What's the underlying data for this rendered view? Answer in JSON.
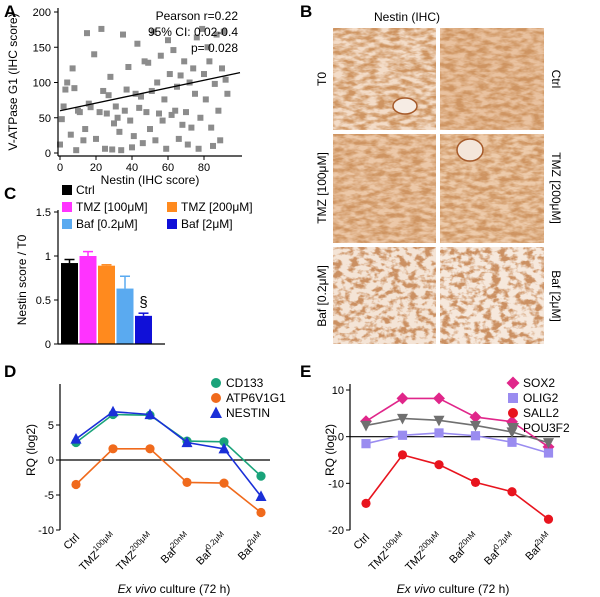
{
  "figure": {
    "panel_letters": [
      "A",
      "B",
      "C",
      "D",
      "E"
    ]
  },
  "chart_data": [
    {
      "panel": "A",
      "type": "scatter",
      "xlabel": "Nestin (IHC score)",
      "ylabel": "V-ATPase G1 (IHC score)",
      "xlim": [
        0,
        100
      ],
      "ylim": [
        0,
        200
      ],
      "xticks": [
        "0",
        "20",
        "40",
        "60",
        "80"
      ],
      "yticks": [
        "0",
        "50",
        "100",
        "150",
        "200"
      ],
      "annotations": [
        "Pearson r=0.22",
        "95% CI: 0.02-0.4",
        "p= 0.028"
      ],
      "marker_color": "#8c8c8c",
      "fit_line": {
        "x": [
          0,
          100
        ],
        "y": [
          60,
          114
        ]
      },
      "points": [
        {
          "x": 0,
          "y": 12
        },
        {
          "x": 1,
          "y": 48
        },
        {
          "x": 2,
          "y": 66
        },
        {
          "x": 3,
          "y": 90
        },
        {
          "x": 4,
          "y": 100
        },
        {
          "x": 6,
          "y": 26
        },
        {
          "x": 7,
          "y": 120
        },
        {
          "x": 8,
          "y": 92
        },
        {
          "x": 9,
          "y": 4
        },
        {
          "x": 10,
          "y": 60
        },
        {
          "x": 11,
          "y": 58
        },
        {
          "x": 13,
          "y": 18
        },
        {
          "x": 14,
          "y": 34
        },
        {
          "x": 15,
          "y": 170
        },
        {
          "x": 16,
          "y": 70
        },
        {
          "x": 17,
          "y": 65
        },
        {
          "x": 19,
          "y": 140
        },
        {
          "x": 20,
          "y": 20
        },
        {
          "x": 22,
          "y": 58
        },
        {
          "x": 23,
          "y": 176
        },
        {
          "x": 24,
          "y": 88
        },
        {
          "x": 25,
          "y": 6
        },
        {
          "x": 26,
          "y": 56
        },
        {
          "x": 27,
          "y": 82
        },
        {
          "x": 28,
          "y": 108
        },
        {
          "x": 29,
          "y": 5
        },
        {
          "x": 30,
          "y": 42
        },
        {
          "x": 31,
          "y": 66
        },
        {
          "x": 32,
          "y": 50
        },
        {
          "x": 33,
          "y": 30
        },
        {
          "x": 34,
          "y": 4
        },
        {
          "x": 35,
          "y": 168
        },
        {
          "x": 36,
          "y": 60
        },
        {
          "x": 37,
          "y": 90
        },
        {
          "x": 38,
          "y": 122
        },
        {
          "x": 39,
          "y": 46
        },
        {
          "x": 40,
          "y": 8
        },
        {
          "x": 41,
          "y": 24
        },
        {
          "x": 42,
          "y": 84
        },
        {
          "x": 43,
          "y": 155
        },
        {
          "x": 44,
          "y": 64
        },
        {
          "x": 45,
          "y": 80
        },
        {
          "x": 46,
          "y": 14
        },
        {
          "x": 47,
          "y": 130
        },
        {
          "x": 48,
          "y": 58
        },
        {
          "x": 49,
          "y": 128
        },
        {
          "x": 50,
          "y": 34
        },
        {
          "x": 51,
          "y": 88
        },
        {
          "x": 52,
          "y": 172
        },
        {
          "x": 53,
          "y": 18
        },
        {
          "x": 54,
          "y": 100
        },
        {
          "x": 55,
          "y": 56
        },
        {
          "x": 56,
          "y": 138
        },
        {
          "x": 57,
          "y": 46
        },
        {
          "x": 58,
          "y": 76
        },
        {
          "x": 59,
          "y": 6
        },
        {
          "x": 60,
          "y": 160
        },
        {
          "x": 61,
          "y": 112
        },
        {
          "x": 62,
          "y": 54
        },
        {
          "x": 63,
          "y": 146
        },
        {
          "x": 64,
          "y": 60
        },
        {
          "x": 65,
          "y": 94
        },
        {
          "x": 66,
          "y": 20
        },
        {
          "x": 67,
          "y": 110
        },
        {
          "x": 68,
          "y": 40
        },
        {
          "x": 69,
          "y": 130
        },
        {
          "x": 70,
          "y": 58
        },
        {
          "x": 71,
          "y": 12
        },
        {
          "x": 72,
          "y": 100
        },
        {
          "x": 73,
          "y": 36
        },
        {
          "x": 74,
          "y": 120
        },
        {
          "x": 75,
          "y": 84
        },
        {
          "x": 76,
          "y": 164
        },
        {
          "x": 77,
          "y": 6
        },
        {
          "x": 78,
          "y": 50
        },
        {
          "x": 79,
          "y": 176
        },
        {
          "x": 80,
          "y": 112
        },
        {
          "x": 81,
          "y": 76
        },
        {
          "x": 82,
          "y": 150
        },
        {
          "x": 83,
          "y": 130
        },
        {
          "x": 84,
          "y": 36
        },
        {
          "x": 85,
          "y": 10
        },
        {
          "x": 86,
          "y": 98
        },
        {
          "x": 87,
          "y": 168
        },
        {
          "x": 88,
          "y": 60
        },
        {
          "x": 89,
          "y": 18
        },
        {
          "x": 90,
          "y": 120
        },
        {
          "x": 91,
          "y": 172
        },
        {
          "x": 92,
          "y": 104
        },
        {
          "x": 93,
          "y": 84
        }
      ]
    },
    {
      "panel": "C",
      "type": "bar",
      "ylabel": "Nestin score / T0",
      "ylim": [
        0,
        1.5
      ],
      "yticks": [
        "0",
        "0.5",
        "1",
        "1.5"
      ],
      "categories": [
        "Ctrl",
        "TMZ [100μM]",
        "TMZ [200μM]",
        "Baf [0.2μM]",
        "Baf [2μM]"
      ],
      "values": [
        0.92,
        1.0,
        0.89,
        0.63,
        0.32
      ],
      "errors": [
        0.04,
        0.05,
        0.01,
        0.14,
        0.03
      ],
      "colors": [
        "#000000",
        "#ff33ff",
        "#ff8a1e",
        "#5aaaf0",
        "#1010d8"
      ],
      "annotations": [
        "§"
      ]
    },
    {
      "panel": "D",
      "type": "line",
      "ylabel": "RQ (log2)",
      "xlabel_italic": "Ex vivo",
      "xlabel_rest": " culture (72 h)",
      "ylim": [
        -10,
        10
      ],
      "yticks": [
        "5",
        "0",
        "-5",
        "-10"
      ],
      "categories": [
        {
          "base": "Ctrl",
          "sup": ""
        },
        {
          "base": "TMZ",
          "sup": "100μM"
        },
        {
          "base": "TMZ",
          "sup": "200μM"
        },
        {
          "base": "Baf",
          "sup": "20nM"
        },
        {
          "base": "Baf",
          "sup": "0.2μM"
        },
        {
          "base": "Baf",
          "sup": "2μM"
        }
      ],
      "series": [
        {
          "name": "CD133",
          "color": "#1aa37a",
          "marker": "circle",
          "values": [
            2.5,
            6.5,
            6.4,
            2.7,
            2.6,
            -2.3
          ]
        },
        {
          "name": "ATP6V1G1",
          "color": "#f06a1c",
          "marker": "circle",
          "values": [
            -3.5,
            1.6,
            1.6,
            -3.2,
            -3.3,
            -7.5
          ]
        },
        {
          "name": "NESTIN",
          "color": "#1a2fd8",
          "marker": "triangle",
          "values": [
            3.0,
            6.9,
            6.5,
            2.5,
            1.6,
            -5.2
          ]
        }
      ]
    },
    {
      "panel": "E",
      "type": "line",
      "ylabel": "RQ (log2)",
      "xlabel_italic": "Ex vivo",
      "xlabel_rest": " culture (72 h)",
      "ylim": [
        -20,
        10
      ],
      "yticks": [
        "10",
        "0",
        "-10",
        "-20"
      ],
      "categories": [
        {
          "base": "Ctrl",
          "sup": ""
        },
        {
          "base": "TMZ",
          "sup": "100μM"
        },
        {
          "base": "TMZ",
          "sup": "200μM"
        },
        {
          "base": "Baf",
          "sup": "20nM"
        },
        {
          "base": "Baf",
          "sup": "0.2μM"
        },
        {
          "base": "Baf",
          "sup": "2μM"
        }
      ],
      "series": [
        {
          "name": "SOX2",
          "color": "#e0268a",
          "marker": "diamond",
          "values": [
            3.3,
            8.2,
            8.2,
            4.2,
            3.2,
            -2.2
          ]
        },
        {
          "name": "OLIG2",
          "color": "#9a8cf0",
          "marker": "square",
          "values": [
            -1.5,
            0.3,
            0.8,
            0.2,
            -1.2,
            -3.5
          ]
        },
        {
          "name": "SALL2",
          "color": "#e8141e",
          "marker": "circle",
          "values": [
            -14.3,
            -3.9,
            -6.0,
            -9.8,
            -11.8,
            -17.7
          ]
        },
        {
          "name": "POU3F2",
          "color": "#707070",
          "marker": "triangle-down",
          "values": [
            2.4,
            3.9,
            3.5,
            2.4,
            1.0,
            -1.3
          ]
        }
      ]
    }
  ],
  "ihc": {
    "title": "Nestin (IHC)",
    "labels": [
      "T0",
      "Ctrl",
      "TMZ [100μM]",
      "TMZ [200μM]",
      "Baf [0.2μM]",
      "Baf [2μM]"
    ]
  }
}
